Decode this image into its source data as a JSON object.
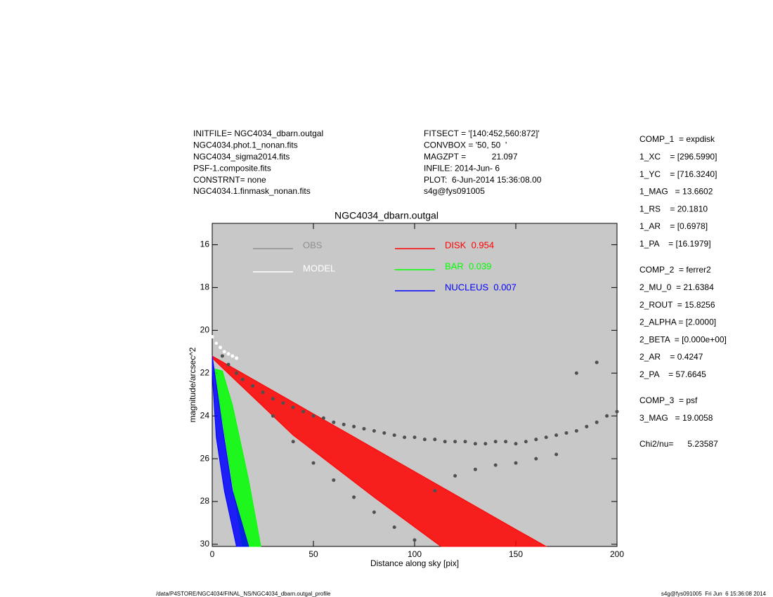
{
  "header_left": [
    "INITFILE= NGC4034_dbarn.outgal",
    "NGC4034.phot.1_nonan.fits",
    "NGC4034_sigma2014.fits",
    "PSF-1.composite.fits",
    "CONSTRNT= none",
    "NGC4034.1.finmask_nonan.fits"
  ],
  "header_mid": [
    "FITSECT = '[140:452,560:872]'",
    "CONVBOX = '50, 50  '",
    "MAGZPT =           21.097",
    "INFILE: 2014-Jun- 6",
    "PLOT:  6-Jun-2014 15:36:08.00",
    "s4g@fys091005"
  ],
  "components": [
    [
      "COMP_1  = expdisk",
      "1_XC    = [296.5990]",
      "1_YC    = [716.3240]",
      "1_MAG   = 13.6602",
      "1_RS    = 20.1810",
      "1_AR    = [0.6978]",
      "1_PA    = [16.1979]"
    ],
    [
      "COMP_2  = ferrer2",
      "2_MU_0  = 21.6384",
      "2_ROUT  = 15.8256",
      "2_ALPHA = [2.0000]",
      "2_BETA  = [0.000e+00]",
      "2_AR    = 0.4247",
      "2_PA    = 57.6645"
    ],
    [
      "COMP_3  = psf",
      "3_MAG   = 19.0058"
    ],
    [
      "Chi2/nu=      5.23587"
    ]
  ],
  "footer_left": "/data/P4STORE/NGC4034/FINAL_NS/NGC4034_dbarn.outgal_profile",
  "footer_right": "s4g@fys091005  Fri Jun  6 15:36:08 2014",
  "chart_data": {
    "type": "scatter",
    "title": "NGC4034_dbarn.outgal",
    "x_label": "Distance along sky [pix]",
    "y_label": "magnitude/arcsec^2",
    "xlim": [
      0,
      200
    ],
    "xticks": [
      0,
      50,
      100,
      150,
      200
    ],
    "ylim": [
      15,
      30.1
    ],
    "yticks": [
      16,
      18,
      20,
      22,
      24,
      26,
      28,
      30
    ],
    "y_inverted": true,
    "background": "#c8c8c8",
    "series": [
      {
        "name": "OBS",
        "color": "#505050",
        "legend_color": "#909090",
        "marker": "dot",
        "x": [
          2,
          5,
          8,
          12,
          15,
          20,
          25,
          30,
          35,
          40,
          45,
          50,
          55,
          60,
          65,
          70,
          75,
          80,
          85,
          90,
          95,
          100,
          105,
          110,
          115,
          120,
          125,
          130,
          135,
          140,
          145,
          150,
          155,
          160,
          165,
          170,
          175,
          180,
          185,
          190,
          195,
          200,
          30,
          40,
          50,
          60,
          70,
          80,
          90,
          100,
          110,
          120,
          130,
          140,
          150,
          160,
          170,
          180,
          190
        ],
        "values": [
          20.6,
          21.2,
          21.6,
          22.0,
          22.3,
          22.6,
          22.9,
          23.2,
          23.4,
          23.6,
          23.8,
          24.0,
          24.1,
          24.3,
          24.4,
          24.5,
          24.6,
          24.7,
          24.8,
          24.9,
          25.0,
          25.0,
          25.1,
          25.1,
          25.2,
          25.2,
          25.2,
          25.3,
          25.3,
          25.2,
          25.2,
          25.3,
          25.2,
          25.1,
          25.0,
          24.9,
          24.8,
          24.7,
          24.5,
          24.3,
          24.0,
          23.8,
          24.0,
          25.2,
          26.2,
          27.0,
          27.8,
          28.5,
          29.2,
          29.8,
          27.5,
          26.8,
          26.5,
          26.3,
          26.2,
          26.0,
          25.8,
          22.0,
          21.5
        ]
      },
      {
        "name": "MODEL",
        "color": "#ffffff",
        "legend_color": "#ffffff",
        "marker": "dot",
        "x": [
          0,
          2,
          4,
          6,
          8,
          10,
          12
        ],
        "values": [
          20.3,
          20.6,
          20.8,
          21.0,
          21.1,
          21.2,
          21.3
        ]
      },
      {
        "name": "DISK  0.954",
        "color": "#ff0000",
        "legend_color": "#ff0000",
        "marker": "band",
        "x": [
          0,
          50,
          100,
          150,
          165,
          113,
          80,
          40,
          10,
          0
        ],
        "values": [
          21.2,
          23.9,
          26.6,
          29.3,
          30.1,
          30.1,
          27.8,
          24.9,
          22.2,
          21.3
        ]
      },
      {
        "name": "BAR  0.039",
        "color": "#00ff00",
        "legend_color": "#00ff00",
        "marker": "band",
        "x": [
          1,
          5,
          10,
          18,
          24,
          15,
          8,
          3,
          1
        ],
        "values": [
          21.8,
          21.9,
          23.5,
          27,
          30.1,
          30.1,
          26,
          23,
          22
        ]
      },
      {
        "name": "NUCLEUS  0.007",
        "color": "#0000ff",
        "legend_color": "#0000ff",
        "marker": "band",
        "x": [
          0,
          5,
          10,
          18,
          12,
          6,
          2,
          0
        ],
        "values": [
          21.2,
          24.5,
          27.5,
          30.1,
          30.1,
          27.5,
          25,
          22
        ]
      }
    ]
  }
}
